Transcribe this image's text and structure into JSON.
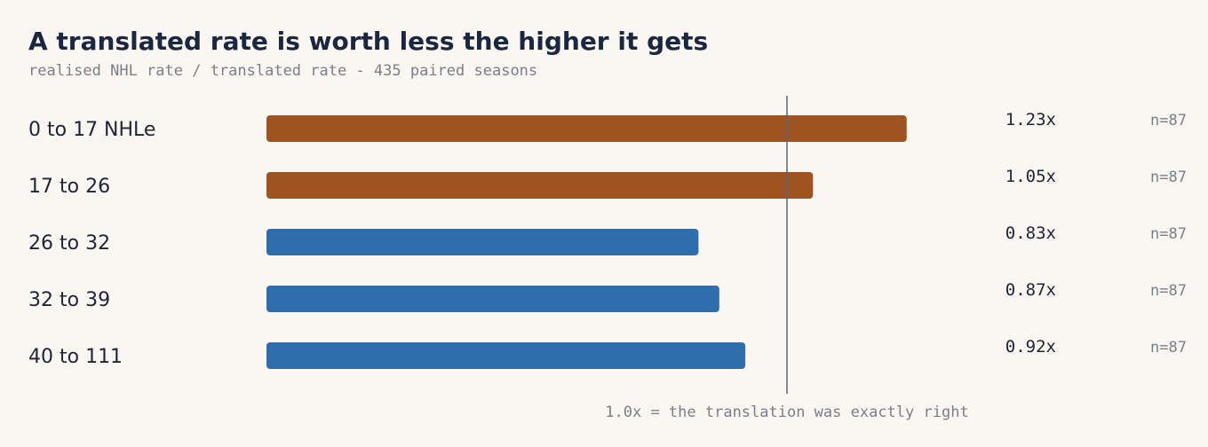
{
  "chart_data": {
    "type": "bar",
    "orientation": "horizontal",
    "title": "A translated rate is worth less the higher it gets",
    "subtitle": "realised NHL rate / translated rate  -  435 paired seasons",
    "categories": [
      "0 to 17 NHLe",
      "17 to 26",
      "26 to 32",
      "32 to 39",
      "40 to 111"
    ],
    "values": [
      1.23,
      1.05,
      0.83,
      0.87,
      0.92
    ],
    "value_labels": [
      "1.23x",
      "1.05x",
      "0.83x",
      "0.87x",
      "0.92x"
    ],
    "counts": [
      "n=87",
      "n=87",
      "n=87",
      "n=87",
      "n=87"
    ],
    "reference_value": 1.0,
    "reference_label": "1.0x = the translation was exactly right",
    "xlim": [
      0,
      1.57
    ],
    "colors": {
      "above": "#a0531f",
      "below": "#2e6eae",
      "reference": "#5b6478"
    }
  }
}
